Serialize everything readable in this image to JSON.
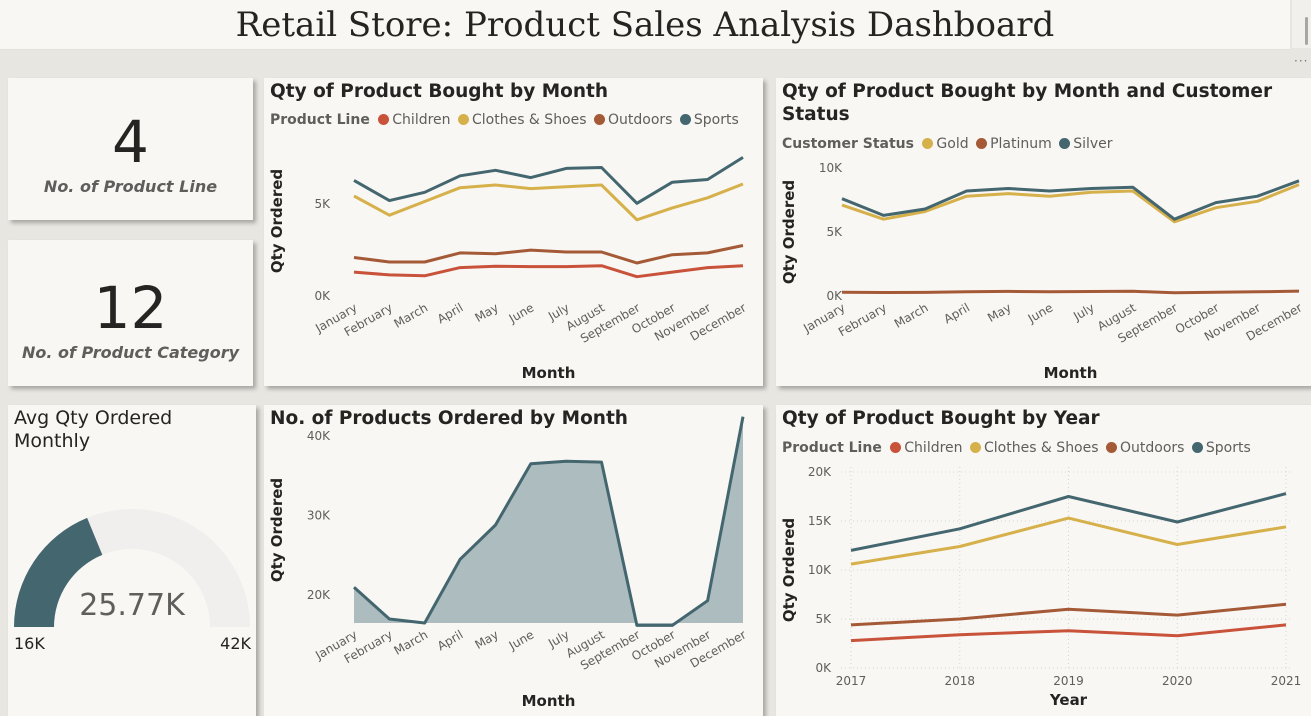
{
  "title": "Retail Store: Product Sales Analysis Dashboard",
  "toolbar": {
    "more_options": "···"
  },
  "kpis": [
    {
      "value": "4",
      "label": "No. of Product Line"
    },
    {
      "value": "12",
      "label": "No. of Product Category"
    }
  ],
  "gauge": {
    "title": "Avg Qty Ordered Monthly",
    "value_label": "25.77K",
    "min_label": "16K",
    "max_label": "42K",
    "value": 25770,
    "min": 16000,
    "max": 42000,
    "fill_color": "#44666f",
    "track_color": "#f0efed"
  },
  "colors": {
    "Children": "#c8523a",
    "Clothes & Shoes": "#d6b04a",
    "Outdoors": "#a55a37",
    "Sports": "#44666f",
    "Gold": "#d6b04a",
    "Platinum": "#a55a37",
    "Silver": "#44666f",
    "area_fill": "#adbcbe",
    "area_line": "#44666f"
  },
  "chart_data": [
    {
      "id": "by_month",
      "type": "line",
      "title": "Qty of Product Bought by Month",
      "legend_title": "Product Line",
      "xlabel": "Month",
      "ylabel": "Qty Ordered",
      "categories": [
        "January",
        "February",
        "March",
        "April",
        "May",
        "June",
        "July",
        "August",
        "September",
        "October",
        "November",
        "December"
      ],
      "yticks": [
        0,
        5000
      ],
      "ytick_labels": [
        "0K",
        "5K"
      ],
      "ylim": [
        0,
        8500
      ],
      "grid": false,
      "series": [
        {
          "name": "Children",
          "values": [
            1300,
            1150,
            1100,
            1550,
            1620,
            1600,
            1600,
            1650,
            1050,
            1300,
            1550,
            1650
          ]
        },
        {
          "name": "Clothes & Shoes",
          "values": [
            5450,
            4400,
            5150,
            5900,
            6050,
            5850,
            5950,
            6050,
            4150,
            4800,
            5350,
            6100
          ]
        },
        {
          "name": "Outdoors",
          "values": [
            2100,
            1850,
            1850,
            2350,
            2300,
            2500,
            2400,
            2400,
            1800,
            2250,
            2350,
            2750
          ]
        },
        {
          "name": "Sports",
          "values": [
            6300,
            5200,
            5650,
            6550,
            6850,
            6450,
            6950,
            7000,
            5050,
            6200,
            6350,
            7550
          ]
        }
      ]
    },
    {
      "id": "by_month_status",
      "type": "line",
      "title": "Qty of Product Bought by Month and Customer Status",
      "legend_title": "Customer Status",
      "xlabel": "Month",
      "ylabel": "Qty Ordered",
      "categories": [
        "January",
        "February",
        "March",
        "April",
        "May",
        "June",
        "July",
        "August",
        "September",
        "October",
        "November",
        "December"
      ],
      "yticks": [
        0,
        5000,
        10000
      ],
      "ytick_labels": [
        "0K",
        "5K",
        "10K"
      ],
      "ylim": [
        0,
        10000
      ],
      "grid": false,
      "series": [
        {
          "name": "Gold",
          "values": [
            7100,
            6000,
            6600,
            7800,
            8000,
            7800,
            8100,
            8200,
            5800,
            6900,
            7400,
            8700
          ]
        },
        {
          "name": "Platinum",
          "values": [
            300,
            270,
            280,
            330,
            360,
            330,
            350,
            370,
            250,
            290,
            330,
            380
          ]
        },
        {
          "name": "Silver",
          "values": [
            7600,
            6300,
            6800,
            8200,
            8400,
            8200,
            8400,
            8500,
            6000,
            7300,
            7800,
            9000
          ]
        }
      ]
    },
    {
      "id": "products_by_month",
      "type": "area",
      "title": "No. of Products Ordered by Month",
      "xlabel": "Month",
      "ylabel": "Qty Ordered",
      "categories": [
        "January",
        "February",
        "March",
        "April",
        "May",
        "June",
        "July",
        "August",
        "September",
        "October",
        "November",
        "December"
      ],
      "yticks": [
        20000,
        30000,
        40000
      ],
      "ytick_labels": [
        "20K",
        "30K",
        "40K"
      ],
      "ylim": [
        16500,
        44500
      ],
      "grid": false,
      "series": [
        {
          "name": "",
          "values": [
            21000,
            17000,
            16500,
            24500,
            28800,
            36500,
            36800,
            36700,
            16200,
            16200,
            19300,
            42400
          ]
        }
      ]
    },
    {
      "id": "by_year",
      "type": "line",
      "title": "Qty of Product Bought by Year",
      "legend_title": "Product Line",
      "xlabel": "Year",
      "ylabel": "Qty Ordered",
      "categories": [
        "2017",
        "2018",
        "2019",
        "2020",
        "2021"
      ],
      "yticks": [
        0,
        5000,
        10000,
        15000,
        20000
      ],
      "ytick_labels": [
        "0K",
        "5K",
        "10K",
        "15K",
        "20K"
      ],
      "ylim": [
        0,
        20000
      ],
      "grid": true,
      "series": [
        {
          "name": "Children",
          "values": [
            2800,
            3400,
            3800,
            3300,
            4400
          ]
        },
        {
          "name": "Clothes & Shoes",
          "values": [
            10600,
            12400,
            15300,
            12600,
            14400
          ]
        },
        {
          "name": "Outdoors",
          "values": [
            4400,
            5000,
            6000,
            5400,
            6500
          ]
        },
        {
          "name": "Sports",
          "values": [
            12000,
            14200,
            17500,
            14900,
            17800
          ]
        }
      ]
    }
  ]
}
